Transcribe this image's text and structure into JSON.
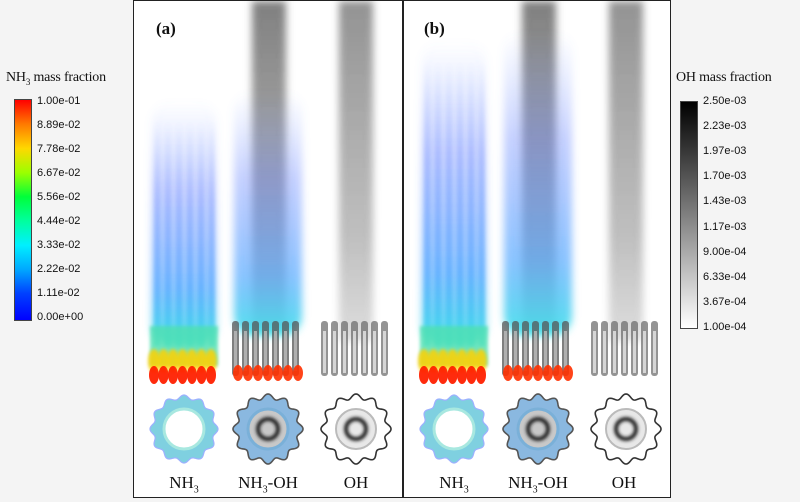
{
  "legend_nh3": {
    "title_prefix": "NH",
    "title_sub": "3",
    "title_suffix": " mass fraction",
    "ticks": [
      "1.00e-01",
      "8.89e-02",
      "7.78e-02",
      "6.67e-02",
      "5.56e-02",
      "4.44e-02",
      "3.33e-02",
      "2.22e-02",
      "1.11e-02",
      "0.00e+00"
    ],
    "colors": [
      "#ff0000",
      "#ff7a00",
      "#ffd800",
      "#9cff00",
      "#00ff3a",
      "#00ff9e",
      "#00f0ff",
      "#00a8ff",
      "#0040ff",
      "#0000ff"
    ]
  },
  "legend_oh": {
    "title": "OH mass fraction",
    "ticks": [
      "2.50e-03",
      "2.23e-03",
      "1.97e-03",
      "1.70e-03",
      "1.43e-03",
      "1.17e-03",
      "9.00e-04",
      "6.33e-04",
      "3.67e-04",
      "1.00e-04"
    ],
    "colors": [
      "#000000",
      "#ffffff"
    ]
  },
  "panels": [
    {
      "label": "(a)",
      "cases": [
        {
          "prefix": "NH",
          "sub": "3",
          "suffix": "",
          "kind": "nh3"
        },
        {
          "prefix": "NH",
          "sub": "3",
          "suffix": "-OH",
          "kind": "both"
        },
        {
          "prefix": "OH",
          "sub": "",
          "suffix": "",
          "kind": "oh"
        }
      ]
    },
    {
      "label": "(b)",
      "cases": [
        {
          "prefix": "NH",
          "sub": "3",
          "suffix": "",
          "kind": "nh3"
        },
        {
          "prefix": "NH",
          "sub": "3",
          "suffix": "-OH",
          "kind": "both"
        },
        {
          "prefix": "OH",
          "sub": "",
          "suffix": "",
          "kind": "oh"
        }
      ]
    }
  ]
}
